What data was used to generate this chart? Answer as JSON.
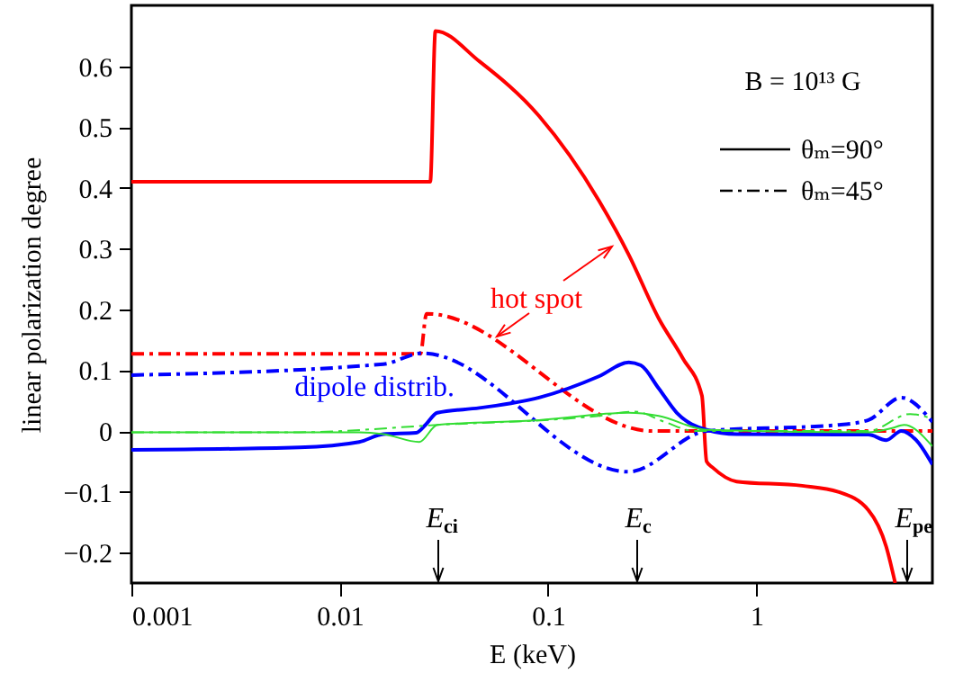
{
  "chart_data": {
    "type": "line",
    "xlabel": "E (keV)",
    "ylabel": "linear polarization degree",
    "log": "x",
    "xlim": [
      0.001,
      7
    ],
    "xticks": [
      0.001,
      0.01,
      0.1,
      1
    ],
    "ylim": [
      -0.25,
      0.7
    ],
    "yticks": [
      {
        "value": -0.2,
        "label": "−0.2"
      },
      {
        "value": -0.1,
        "label": "−0.1"
      },
      0,
      0.1,
      0.2,
      0.3,
      0.4,
      0.5,
      0.6
    ],
    "grid": false,
    "series": [
      {
        "color": "#ff0000",
        "line_style": "solid",
        "x": [
          0.001,
          0.0272,
          0.0288,
          0.0468,
          0.0906,
          0.1755,
          0.244,
          0.34,
          0.443,
          0.548,
          0.577,
          0.617,
          0.804,
          1.66,
          2.47,
          3.45,
          4.2,
          4.64
        ],
        "values": [
          0.41,
          0.41,
          0.658,
          0.608,
          0.518,
          0.379,
          0.29,
          0.185,
          0.12,
          0.058,
          -0.05,
          -0.06,
          -0.083,
          -0.09,
          -0.1,
          -0.13,
          -0.19,
          -0.25
        ]
      },
      {
        "color": "#ff0000",
        "line_style": "dashdot",
        "x": [
          0.001,
          0.0244,
          0.0261,
          0.318,
          7
        ],
        "values": [
          0.127,
          0.127,
          0.193,
          0,
          0
        ]
      },
      {
        "color": "#0000ff",
        "line_style": "solid",
        "x": [
          0.001,
          0.0064,
          0.0124,
          0.0162,
          0.0233,
          0.0258,
          0.0294,
          0.0468,
          0.0906,
          0.1755,
          0.244,
          0.279,
          0.34,
          0.415,
          0.577,
          0.804,
          3.45,
          4.2,
          4.96,
          5.85,
          7
        ],
        "values": [
          -0.031,
          -0.027,
          -0.018,
          -0.005,
          -0.003,
          0.01,
          0.03,
          0.038,
          0.055,
          0.09,
          0.113,
          0.108,
          0.07,
          0.03,
          0.002,
          -0.005,
          -0.006,
          -0.015,
          0,
          -0.015,
          -0.055
        ]
      },
      {
        "color": "#0000ff",
        "line_style": "dashdot",
        "x": [
          0.001,
          0.0162,
          0.0249,
          0.244,
          0.577,
          2.47,
          3.45,
          4.96,
          7
        ],
        "values": [
          0.092,
          0.11,
          0.128,
          -0.067,
          0,
          0.01,
          0.018,
          0.055,
          0.015
        ]
      },
      {
        "color": "#33dd33",
        "line_style": "solid",
        "x": [
          0.001,
          0.0124,
          0.0162,
          0.0241,
          0.0294,
          0.0906,
          0.244,
          0.34,
          0.577,
          3.45,
          4.49,
          5.12,
          7
        ],
        "values": [
          -0.002,
          -0.002,
          -0.005,
          -0.018,
          0.01,
          0.018,
          0.03,
          0.025,
          0.002,
          -0.002,
          0.005,
          0.01,
          -0.025
        ]
      },
      {
        "color": "#33dd33",
        "line_style": "dashdot",
        "x": [
          0.001,
          0.0064,
          0.0294,
          0.1755,
          0.261,
          0.363,
          0.506,
          3.45,
          5.48,
          7
        ],
        "values": [
          -0.002,
          -0.002,
          0.01,
          0.025,
          0.032,
          0.015,
          0,
          0,
          0.028,
          0.02
        ]
      }
    ],
    "annotations": [
      "B = 10¹³ G",
      "θₘ=90°",
      "θₘ=45°",
      "hot spot",
      "dipole distrib.",
      "E$_{ci}$",
      "E$_{c}$",
      "E$_{pe}$"
    ]
  }
}
